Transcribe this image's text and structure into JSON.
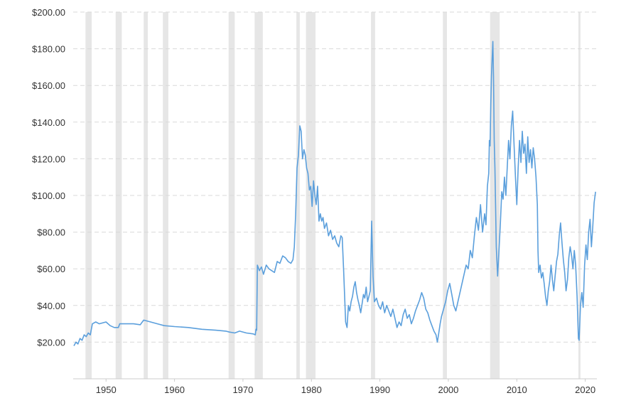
{
  "chart_data": {
    "type": "line",
    "title": "",
    "xlabel": "",
    "ylabel": "",
    "xlim": [
      1945.2,
      2021.7
    ],
    "ylim": [
      0,
      200
    ],
    "grid": "horizontal dashed",
    "line_color": "#5b9fdc",
    "recession_color": "#e6e6e6",
    "y_ticks": [
      {
        "value": 20,
        "label": "$20.00"
      },
      {
        "value": 40,
        "label": "$40.00"
      },
      {
        "value": 60,
        "label": "$60.00"
      },
      {
        "value": 80,
        "label": "$80.00"
      },
      {
        "value": 100,
        "label": "$100.00"
      },
      {
        "value": 120,
        "label": "$120.00"
      },
      {
        "value": 140,
        "label": "$140.00"
      },
      {
        "value": 160,
        "label": "$160.00"
      },
      {
        "value": 180,
        "label": "$180.00"
      },
      {
        "value": 200,
        "label": "$200.00"
      }
    ],
    "x_ticks": [
      {
        "value": 1950,
        "label": "1950"
      },
      {
        "value": 1960,
        "label": "1960"
      },
      {
        "value": 1970,
        "label": "1970"
      },
      {
        "value": 1980,
        "label": "1980"
      },
      {
        "value": 1990,
        "label": "1990"
      },
      {
        "value": 2000,
        "label": "2000"
      },
      {
        "value": 2010,
        "label": "2010"
      },
      {
        "value": 2020,
        "label": "2020"
      }
    ],
    "recessions": [
      [
        1947.0,
        1947.9
      ],
      [
        1951.4,
        1952.3
      ],
      [
        1955.5,
        1956.1
      ],
      [
        1958.3,
        1959.1
      ],
      [
        1967.9,
        1968.8
      ],
      [
        1971.7,
        1972.9
      ],
      [
        1977.8,
        1978.3
      ],
      [
        1979.2,
        1980.6
      ],
      [
        1988.7,
        1989.3
      ],
      [
        1999.2,
        1999.8
      ],
      [
        2006.1,
        2007.5
      ],
      [
        2019.0,
        2019.3
      ]
    ],
    "series": [
      {
        "points": [
          [
            1945.3,
            18
          ],
          [
            1945.6,
            20
          ],
          [
            1945.9,
            19
          ],
          [
            1946.2,
            22
          ],
          [
            1946.5,
            21
          ],
          [
            1946.8,
            24
          ],
          [
            1947.1,
            23
          ],
          [
            1947.4,
            25
          ],
          [
            1947.7,
            24
          ],
          [
            1948.0,
            30
          ],
          [
            1948.5,
            31
          ],
          [
            1949.0,
            30
          ],
          [
            1950.0,
            31
          ],
          [
            1950.6,
            29
          ],
          [
            1951.2,
            28
          ],
          [
            1951.8,
            28
          ],
          [
            1952.0,
            30
          ],
          [
            1953.0,
            30
          ],
          [
            1954.0,
            30
          ],
          [
            1955.0,
            29.5
          ],
          [
            1955.5,
            32
          ],
          [
            1956.5,
            31
          ],
          [
            1957.5,
            30
          ],
          [
            1958.5,
            29
          ],
          [
            1960.0,
            28.5
          ],
          [
            1962.0,
            28
          ],
          [
            1964.0,
            27
          ],
          [
            1966.0,
            26.5
          ],
          [
            1967.5,
            26
          ],
          [
            1968.0,
            25.5
          ],
          [
            1968.8,
            25
          ],
          [
            1969.5,
            26
          ],
          [
            1970.5,
            25
          ],
          [
            1971.5,
            24.5
          ],
          [
            1971.8,
            24
          ],
          [
            1971.9,
            27
          ],
          [
            1972.0,
            26.5
          ],
          [
            1972.1,
            62
          ],
          [
            1972.4,
            59
          ],
          [
            1972.7,
            61
          ],
          [
            1973.0,
            57
          ],
          [
            1973.4,
            62
          ],
          [
            1973.8,
            60
          ],
          [
            1974.2,
            59
          ],
          [
            1974.6,
            58
          ],
          [
            1975.0,
            64
          ],
          [
            1975.4,
            63
          ],
          [
            1975.8,
            67
          ],
          [
            1976.2,
            66
          ],
          [
            1976.6,
            64
          ],
          [
            1977.0,
            63
          ],
          [
            1977.3,
            65
          ],
          [
            1977.5,
            72
          ],
          [
            1977.7,
            90
          ],
          [
            1977.9,
            115
          ],
          [
            1978.1,
            122
          ],
          [
            1978.3,
            138
          ],
          [
            1978.5,
            135
          ],
          [
            1978.7,
            120
          ],
          [
            1978.9,
            125
          ],
          [
            1979.1,
            122
          ],
          [
            1979.3,
            115
          ],
          [
            1979.5,
            112
          ],
          [
            1979.7,
            103
          ],
          [
            1979.9,
            105
          ],
          [
            1980.1,
            94
          ],
          [
            1980.3,
            108
          ],
          [
            1980.5,
            100
          ],
          [
            1980.7,
            95
          ],
          [
            1980.9,
            105
          ],
          [
            1981.1,
            86
          ],
          [
            1981.3,
            90
          ],
          [
            1981.5,
            86
          ],
          [
            1981.7,
            88
          ],
          [
            1981.9,
            82
          ],
          [
            1982.2,
            85
          ],
          [
            1982.5,
            78
          ],
          [
            1982.8,
            81
          ],
          [
            1983.1,
            76
          ],
          [
            1983.4,
            78
          ],
          [
            1983.7,
            74
          ],
          [
            1984.0,
            72
          ],
          [
            1984.3,
            78
          ],
          [
            1984.5,
            77
          ],
          [
            1984.7,
            60
          ],
          [
            1984.9,
            40
          ],
          [
            1985.0,
            31
          ],
          [
            1985.2,
            28
          ],
          [
            1985.4,
            40
          ],
          [
            1985.6,
            37
          ],
          [
            1985.8,
            42
          ],
          [
            1986.0,
            45
          ],
          [
            1986.2,
            50
          ],
          [
            1986.4,
            53
          ],
          [
            1986.6,
            47
          ],
          [
            1986.8,
            43
          ],
          [
            1987.0,
            40
          ],
          [
            1987.2,
            36
          ],
          [
            1987.4,
            41
          ],
          [
            1987.6,
            46
          ],
          [
            1987.8,
            44
          ],
          [
            1988.0,
            50
          ],
          [
            1988.2,
            42
          ],
          [
            1988.4,
            45
          ],
          [
            1988.6,
            48
          ],
          [
            1988.8,
            86
          ],
          [
            1989.0,
            56
          ],
          [
            1989.2,
            42
          ],
          [
            1989.5,
            44
          ],
          [
            1989.8,
            40
          ],
          [
            1990.1,
            38
          ],
          [
            1990.4,
            42
          ],
          [
            1990.7,
            36
          ],
          [
            1991.0,
            40
          ],
          [
            1991.3,
            37
          ],
          [
            1991.6,
            34
          ],
          [
            1991.9,
            38
          ],
          [
            1992.2,
            33
          ],
          [
            1992.5,
            28
          ],
          [
            1992.8,
            31
          ],
          [
            1993.1,
            29
          ],
          [
            1993.4,
            35
          ],
          [
            1993.7,
            38
          ],
          [
            1994.0,
            33
          ],
          [
            1994.3,
            35
          ],
          [
            1994.6,
            30
          ],
          [
            1994.9,
            33
          ],
          [
            1995.2,
            37
          ],
          [
            1995.5,
            40
          ],
          [
            1995.8,
            43
          ],
          [
            1996.1,
            47
          ],
          [
            1996.4,
            44
          ],
          [
            1996.7,
            38
          ],
          [
            1997.0,
            36
          ],
          [
            1997.3,
            32
          ],
          [
            1997.6,
            29
          ],
          [
            1997.9,
            26
          ],
          [
            1998.2,
            24
          ],
          [
            1998.4,
            20
          ],
          [
            1998.6,
            25
          ],
          [
            1998.8,
            30
          ],
          [
            1999.0,
            34
          ],
          [
            1999.3,
            38
          ],
          [
            1999.6,
            42
          ],
          [
            1999.9,
            48
          ],
          [
            2000.2,
            52
          ],
          [
            2000.5,
            46
          ],
          [
            2000.8,
            40
          ],
          [
            2001.1,
            37
          ],
          [
            2001.4,
            42
          ],
          [
            2001.7,
            47
          ],
          [
            2002.0,
            52
          ],
          [
            2002.3,
            57
          ],
          [
            2002.6,
            62
          ],
          [
            2002.9,
            60
          ],
          [
            2003.2,
            70
          ],
          [
            2003.5,
            66
          ],
          [
            2003.8,
            78
          ],
          [
            2004.1,
            88
          ],
          [
            2004.4,
            81
          ],
          [
            2004.7,
            95
          ],
          [
            2005.0,
            80
          ],
          [
            2005.3,
            90
          ],
          [
            2005.5,
            84
          ],
          [
            2005.7,
            105
          ],
          [
            2005.9,
            112
          ],
          [
            2006.0,
            130
          ],
          [
            2006.1,
            127
          ],
          [
            2006.2,
            150
          ],
          [
            2006.3,
            165
          ],
          [
            2006.4,
            175
          ],
          [
            2006.5,
            184
          ],
          [
            2006.6,
            165
          ],
          [
            2006.7,
            130
          ],
          [
            2006.8,
            115
          ],
          [
            2006.9,
            95
          ],
          [
            2007.0,
            72
          ],
          [
            2007.2,
            56
          ],
          [
            2007.4,
            70
          ],
          [
            2007.6,
            85
          ],
          [
            2007.8,
            102
          ],
          [
            2008.0,
            98
          ],
          [
            2008.2,
            110
          ],
          [
            2008.4,
            100
          ],
          [
            2008.6,
            115
          ],
          [
            2008.8,
            130
          ],
          [
            2009.0,
            120
          ],
          [
            2009.2,
            138
          ],
          [
            2009.4,
            146
          ],
          [
            2009.6,
            128
          ],
          [
            2009.8,
            110
          ],
          [
            2010.0,
            95
          ],
          [
            2010.2,
            115
          ],
          [
            2010.4,
            130
          ],
          [
            2010.6,
            118
          ],
          [
            2010.8,
            135
          ],
          [
            2011.0,
            123
          ],
          [
            2011.2,
            128
          ],
          [
            2011.4,
            112
          ],
          [
            2011.6,
            132
          ],
          [
            2011.8,
            118
          ],
          [
            2012.0,
            125
          ],
          [
            2012.2,
            115
          ],
          [
            2012.4,
            126
          ],
          [
            2012.6,
            120
          ],
          [
            2012.8,
            110
          ],
          [
            2013.0,
            95
          ],
          [
            2013.1,
            70
          ],
          [
            2013.2,
            58
          ],
          [
            2013.4,
            62
          ],
          [
            2013.6,
            55
          ],
          [
            2013.8,
            58
          ],
          [
            2014.0,
            52
          ],
          [
            2014.2,
            45
          ],
          [
            2014.4,
            40
          ],
          [
            2014.6,
            48
          ],
          [
            2014.8,
            53
          ],
          [
            2015.0,
            62
          ],
          [
            2015.2,
            54
          ],
          [
            2015.4,
            48
          ],
          [
            2015.6,
            56
          ],
          [
            2015.8,
            64
          ],
          [
            2016.0,
            68
          ],
          [
            2016.2,
            78
          ],
          [
            2016.4,
            85
          ],
          [
            2016.6,
            74
          ],
          [
            2016.8,
            65
          ],
          [
            2017.0,
            58
          ],
          [
            2017.2,
            48
          ],
          [
            2017.4,
            54
          ],
          [
            2017.6,
            66
          ],
          [
            2017.8,
            72
          ],
          [
            2018.0,
            67
          ],
          [
            2018.2,
            60
          ],
          [
            2018.4,
            70
          ],
          [
            2018.6,
            62
          ],
          [
            2018.8,
            45
          ],
          [
            2019.0,
            22
          ],
          [
            2019.1,
            21
          ],
          [
            2019.3,
            40
          ],
          [
            2019.5,
            47
          ],
          [
            2019.7,
            39
          ],
          [
            2019.9,
            62
          ],
          [
            2020.1,
            73
          ],
          [
            2020.3,
            65
          ],
          [
            2020.5,
            80
          ],
          [
            2020.7,
            87
          ],
          [
            2020.9,
            72
          ],
          [
            2021.1,
            83
          ],
          [
            2021.3,
            96
          ],
          [
            2021.5,
            102
          ]
        ]
      }
    ]
  }
}
